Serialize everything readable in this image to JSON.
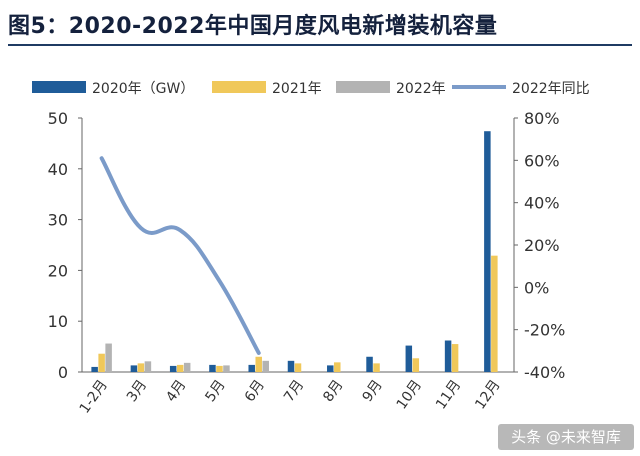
{
  "title": "图5：2020-2022年中国月度风电新增装机容量",
  "watermark": "头条 @未来智库",
  "colors": {
    "s2020": "#1f5c99",
    "s2021": "#f0c85a",
    "s2022": "#b3b3b3",
    "line2022": "#7b9bc9",
    "title": "#14213d"
  },
  "chart_data": {
    "type": "bar",
    "categories": [
      "1-2月",
      "3月",
      "4月",
      "5月",
      "6月",
      "7月",
      "8月",
      "9月",
      "10月",
      "11月",
      "12月"
    ],
    "series": [
      {
        "name": "2020年（GW）",
        "type": "bar",
        "axis": "left",
        "values": [
          1.0,
          1.3,
          1.2,
          1.4,
          1.4,
          2.2,
          1.3,
          3.0,
          5.2,
          6.2,
          47.4
        ]
      },
      {
        "name": "2021年",
        "type": "bar",
        "axis": "left",
        "values": [
          3.6,
          1.7,
          1.4,
          1.2,
          3.0,
          1.7,
          1.9,
          1.7,
          2.7,
          5.5,
          22.9
        ]
      },
      {
        "name": "2022年",
        "type": "bar",
        "axis": "left",
        "values": [
          5.6,
          2.1,
          1.8,
          1.3,
          2.2,
          null,
          null,
          null,
          null,
          null,
          null
        ]
      },
      {
        "name": "2022年同比",
        "type": "line",
        "axis": "right",
        "unit": "%",
        "values": [
          61,
          28,
          27,
          3,
          -31,
          null,
          null,
          null,
          null,
          null,
          null
        ]
      }
    ],
    "yleft": {
      "lim": [
        0,
        50
      ],
      "ticks": [
        "0",
        "10",
        "20",
        "30",
        "40",
        "50"
      ]
    },
    "yright": {
      "lim": [
        -40,
        80
      ],
      "ticks": [
        "-40%",
        "-20%",
        "0%",
        "20%",
        "40%",
        "60%",
        "80%"
      ]
    },
    "grid": false,
    "legend": "top"
  }
}
